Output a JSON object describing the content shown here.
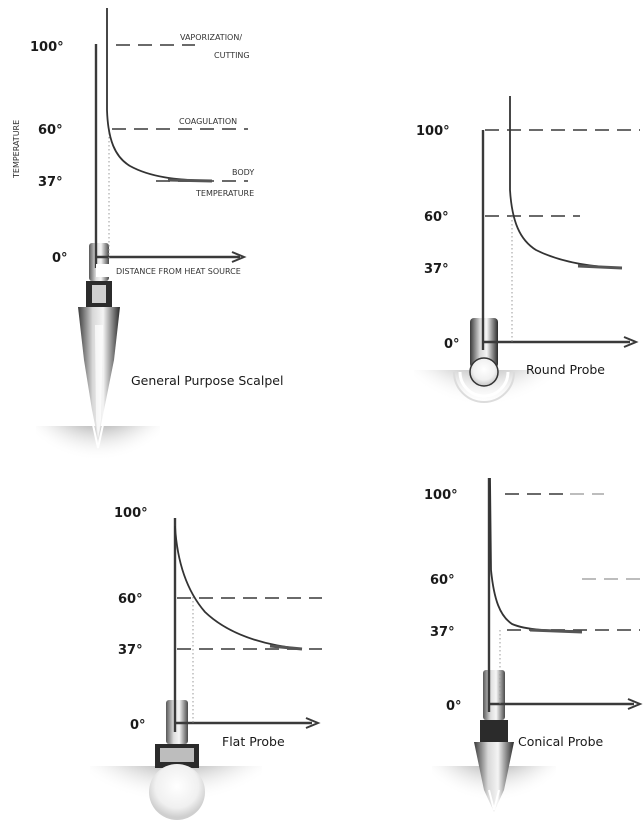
{
  "axes": {
    "y_label": "TEMPERATURE",
    "x_label": "DISTANCE FROM HEAT SOURCE"
  },
  "ticks": {
    "t100": "100°",
    "t60": "60°",
    "t37": "37°",
    "t0": "0°"
  },
  "annotations": {
    "vaporization_line1": "VAPORIZATION/",
    "vaporization_line2": "CUTTING",
    "coagulation": "COAGULATION",
    "body_line1": "BODY",
    "body_line2": "TEMPERATURE"
  },
  "panels": [
    {
      "caption": "General Purpose Scalpel"
    },
    {
      "caption": "Round Probe"
    },
    {
      "caption": "Flat Probe"
    },
    {
      "caption": "Conical Probe"
    }
  ],
  "colors": {
    "ink": "#1a1a1a",
    "axis": "#3a3a3a",
    "dash": "#6a6a6a",
    "tissue": "#8c8c8c"
  }
}
